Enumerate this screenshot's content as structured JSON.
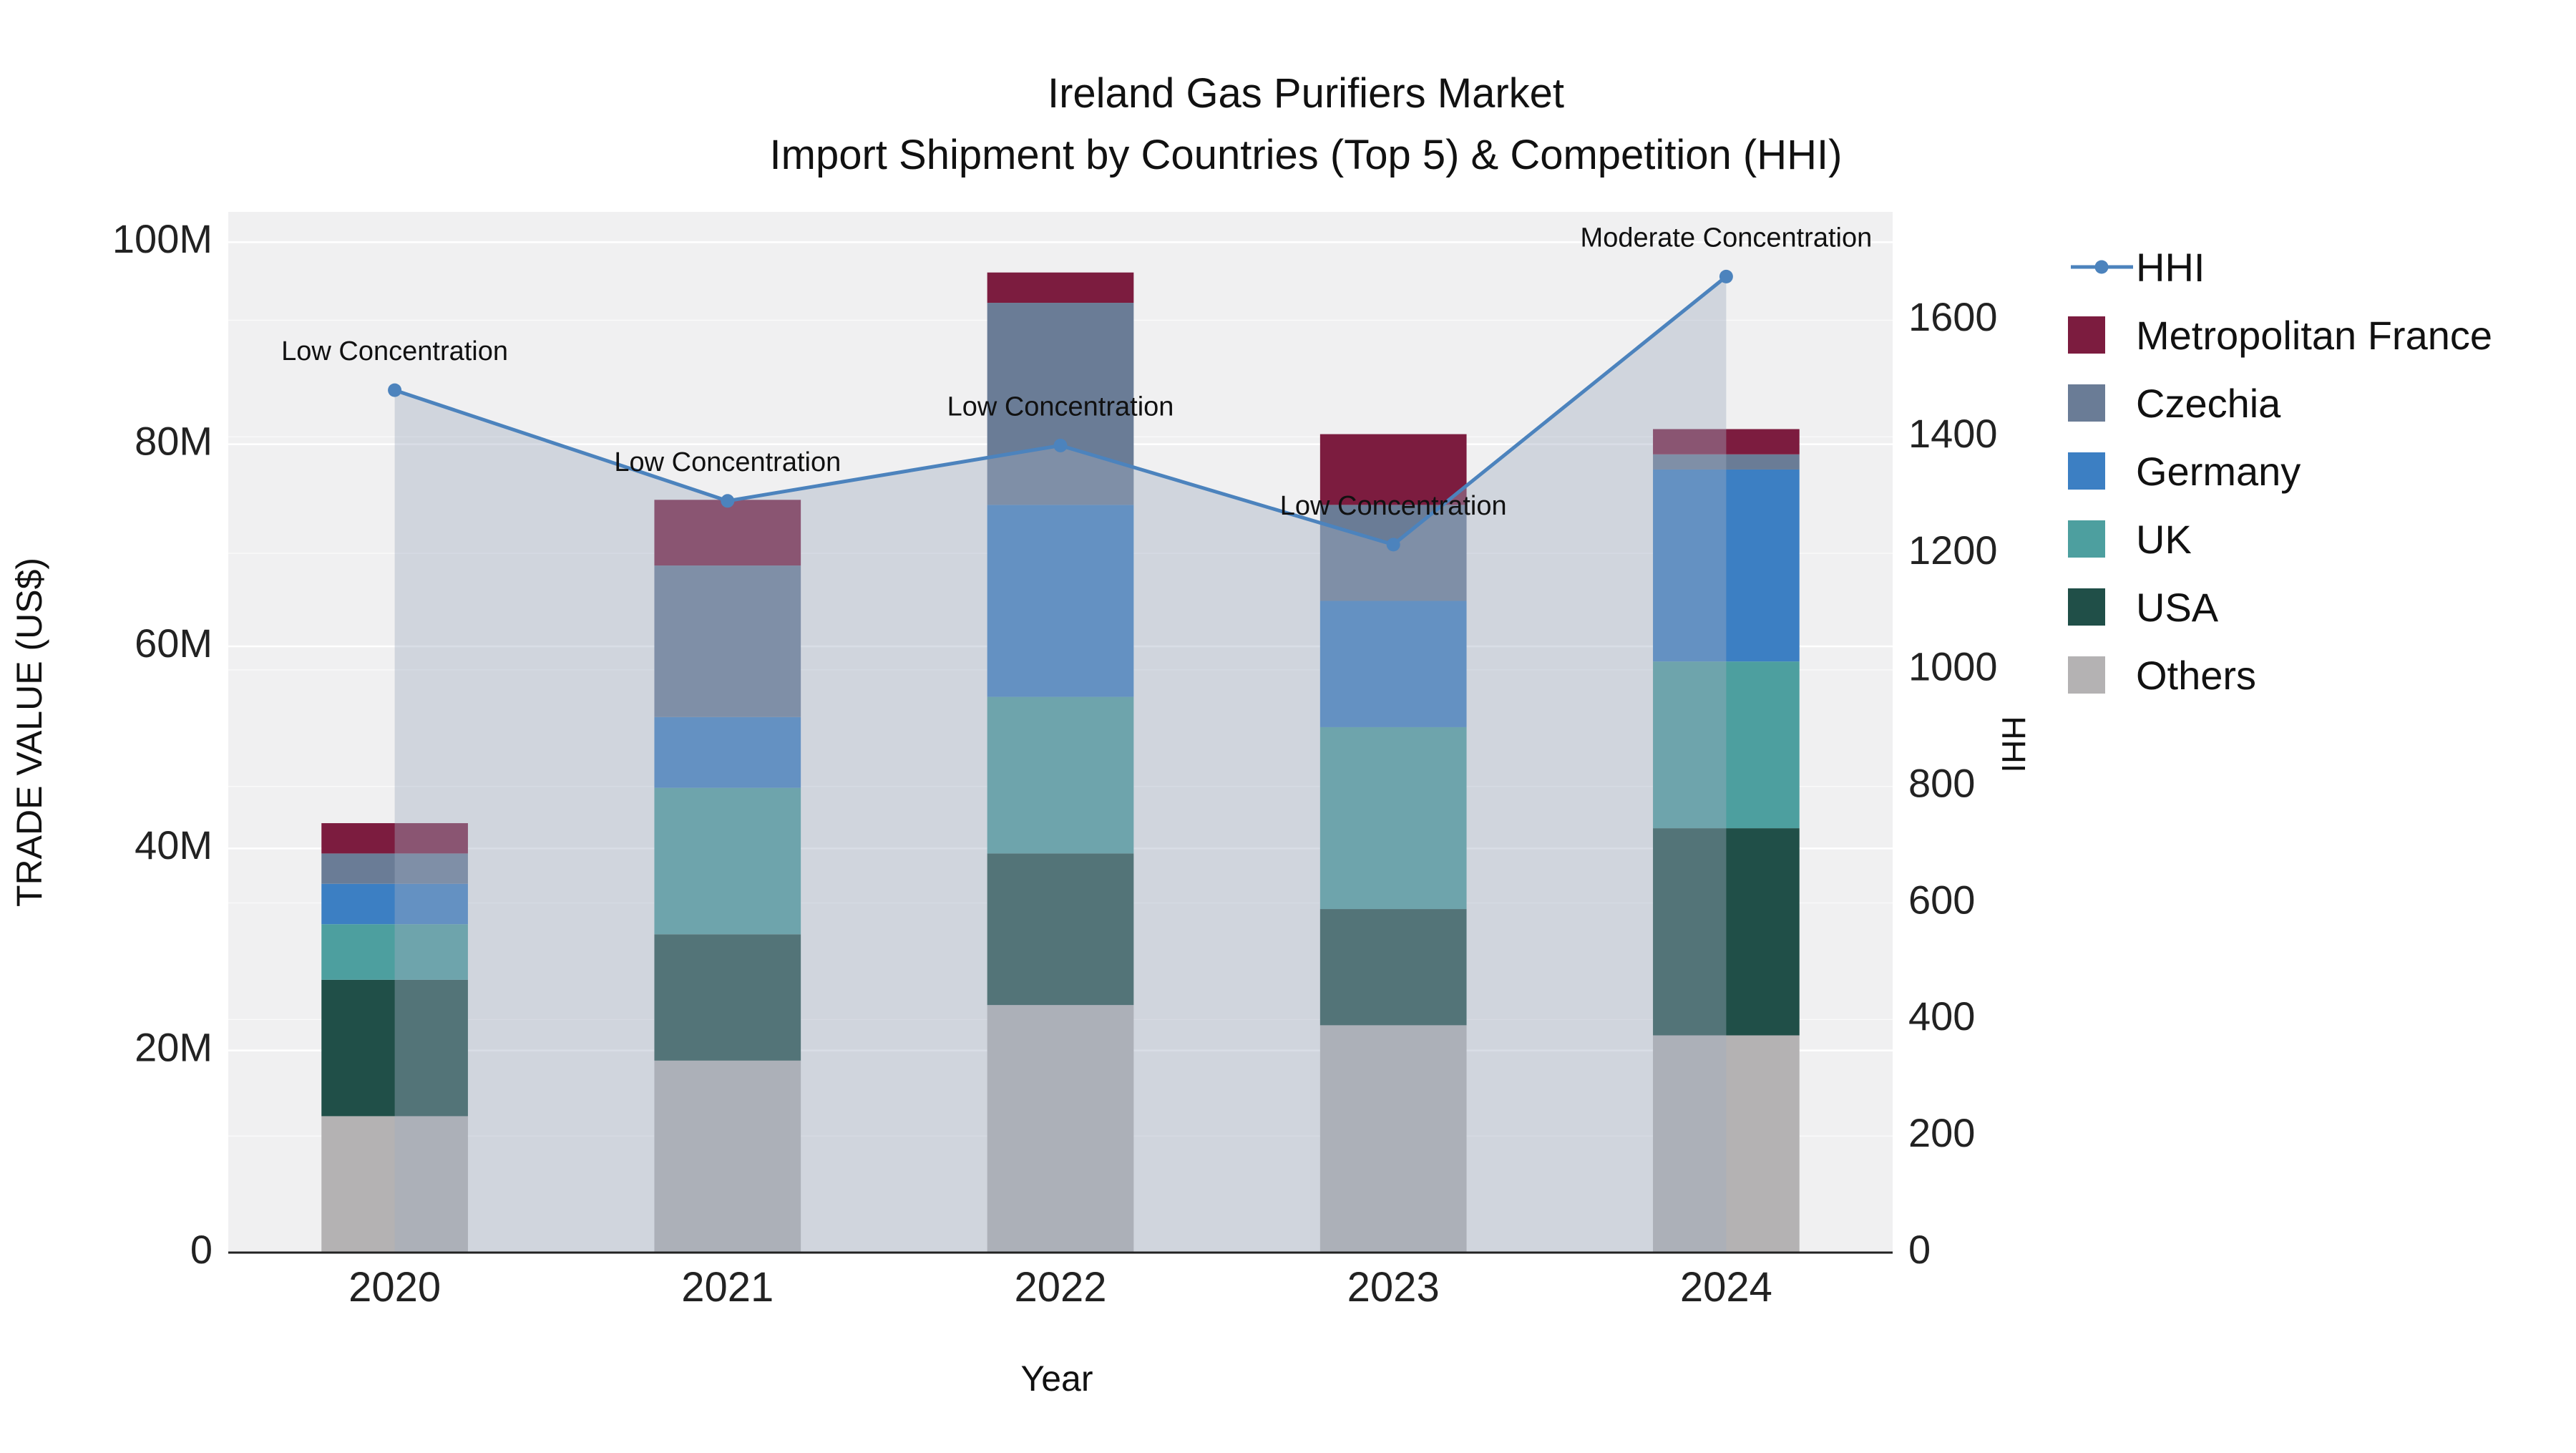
{
  "figure": {
    "background": "#ffffff"
  },
  "chart_data": {
    "type": "bar",
    "subtype": "stacked-bar-with-line-overlay",
    "title": "Ireland Gas Purifiers Market",
    "subtitle": "Import Shipment by Countries (Top 5) & Competition (HHI)",
    "xlabel": "Year",
    "ylabel_left": "TRADE VALUE (US$)",
    "ylabel_right": "HHI",
    "plot_bg": "#f0f0f1",
    "grid_color": "#ffffff",
    "axis_line_color": "#222222",
    "unit": "USD millions",
    "categories": [
      "2020",
      "2021",
      "2022",
      "2023",
      "2024"
    ],
    "bar_series": [
      {
        "name": "Others",
        "color": "#b4b2b3",
        "values": [
          13.5,
          19.0,
          24.5,
          22.5,
          21.5
        ]
      },
      {
        "name": "USA",
        "color": "#204f48",
        "values": [
          13.5,
          12.5,
          15.0,
          11.5,
          20.5
        ]
      },
      {
        "name": "UK",
        "color": "#4d9f9f",
        "values": [
          5.5,
          14.5,
          15.5,
          18.0,
          16.5
        ]
      },
      {
        "name": "Germany",
        "color": "#3c7fc3",
        "values": [
          4.0,
          7.0,
          19.0,
          12.5,
          19.0
        ]
      },
      {
        "name": "Czechia",
        "color": "#6a7c96",
        "values": [
          3.0,
          15.0,
          20.0,
          9.5,
          1.5
        ]
      },
      {
        "name": "Metropolitan France",
        "color": "#7c1c3f",
        "values": [
          3.0,
          6.5,
          3.0,
          7.0,
          2.5
        ]
      }
    ],
    "bar_totals": [
      42.5,
      74.5,
      97.0,
      81.0,
      81.5
    ],
    "line_series": {
      "name": "HHI",
      "color": "#4c83bd",
      "fill_color": "rgba(160,172,192,0.40)",
      "values": [
        1480,
        1290,
        1385,
        1215,
        1675
      ]
    },
    "annotations": [
      "Low Concentration",
      "Low Concentration",
      "Low Concentration",
      "Low Concentration",
      "Moderate Concentration"
    ],
    "y_left": {
      "axis_max": 103,
      "ticks": [
        0,
        20,
        40,
        60,
        80,
        100
      ],
      "tick_labels": [
        "0",
        "20M",
        "40M",
        "60M",
        "80M",
        "100M"
      ]
    },
    "y_right": {
      "axis_max": 1786,
      "ticks": [
        0,
        200,
        400,
        600,
        800,
        1000,
        1200,
        1400,
        1600
      ],
      "tick_labels": [
        "0",
        "200",
        "400",
        "600",
        "800",
        "1000",
        "1200",
        "1400",
        "1600"
      ]
    },
    "legend": [
      {
        "label": "HHI",
        "type": "line",
        "color": "#4c83bd"
      },
      {
        "label": "Metropolitan France",
        "type": "square",
        "color": "#7c1c3f"
      },
      {
        "label": "Czechia",
        "type": "square",
        "color": "#6a7c96"
      },
      {
        "label": "Germany",
        "type": "square",
        "color": "#3c7fc3"
      },
      {
        "label": "UK",
        "type": "square",
        "color": "#4d9f9f"
      },
      {
        "label": "USA",
        "type": "square",
        "color": "#204f48"
      },
      {
        "label": "Others",
        "type": "square",
        "color": "#b4b2b3"
      }
    ]
  }
}
